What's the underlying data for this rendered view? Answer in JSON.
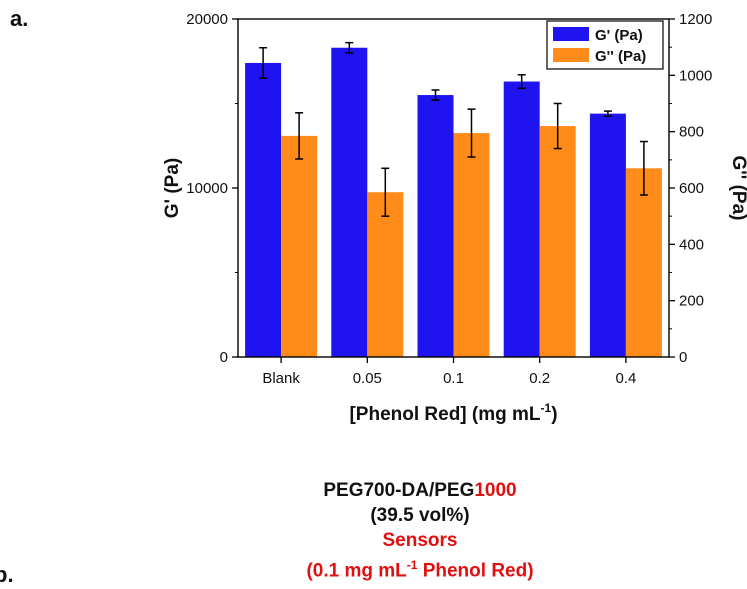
{
  "panel_labels": {
    "a": "a.",
    "b": "b."
  },
  "chart_data": {
    "type": "bar",
    "categories": [
      "Blank",
      "0.05",
      "0.1",
      "0.2",
      "0.4"
    ],
    "xlabel_main": "[Phenol Red] (mg mL",
    "xlabel_sup": "-1",
    "xlabel_end": ")",
    "ylabel_left": "G' (Pa)",
    "ylabel_right": "G'' (Pa)",
    "left_axis": {
      "ylim": [
        0,
        20000
      ],
      "ticks": [
        0,
        10000,
        20000
      ],
      "tick_labels": [
        "0",
        "10000",
        "20000"
      ]
    },
    "right_axis": {
      "ylim": [
        0,
        1200
      ],
      "ticks": [
        0,
        200,
        400,
        600,
        800,
        1000,
        1200
      ],
      "tick_labels": [
        "0",
        "200",
        "400",
        "600",
        "800",
        "1000",
        "1200"
      ]
    },
    "series": [
      {
        "name": "G' (Pa)",
        "axis": "left",
        "color": "#1f14f0",
        "values": [
          17400,
          18300,
          15500,
          16300,
          14400
        ],
        "errors": [
          900,
          300,
          300,
          400,
          150
        ]
      },
      {
        "name": "G'' (Pa)",
        "axis": "right",
        "color": "#ff8c1a",
        "values": [
          785,
          585,
          795,
          820,
          670
        ],
        "errors": [
          82,
          85,
          85,
          80,
          95
        ]
      }
    ],
    "legend_position": "top-right",
    "grid": false
  },
  "caption": {
    "line1_a": "PEG700-DA/PEG",
    "line1_b": "1000",
    "line2": "(39.5 vol%)",
    "line3": "Sensors",
    "line4_a": "(0.1 mg mL",
    "line4_sup": "-1",
    "line4_b": " Phenol Red)",
    "colors": {
      "highlight": "#e01010",
      "text": "#111111"
    }
  }
}
